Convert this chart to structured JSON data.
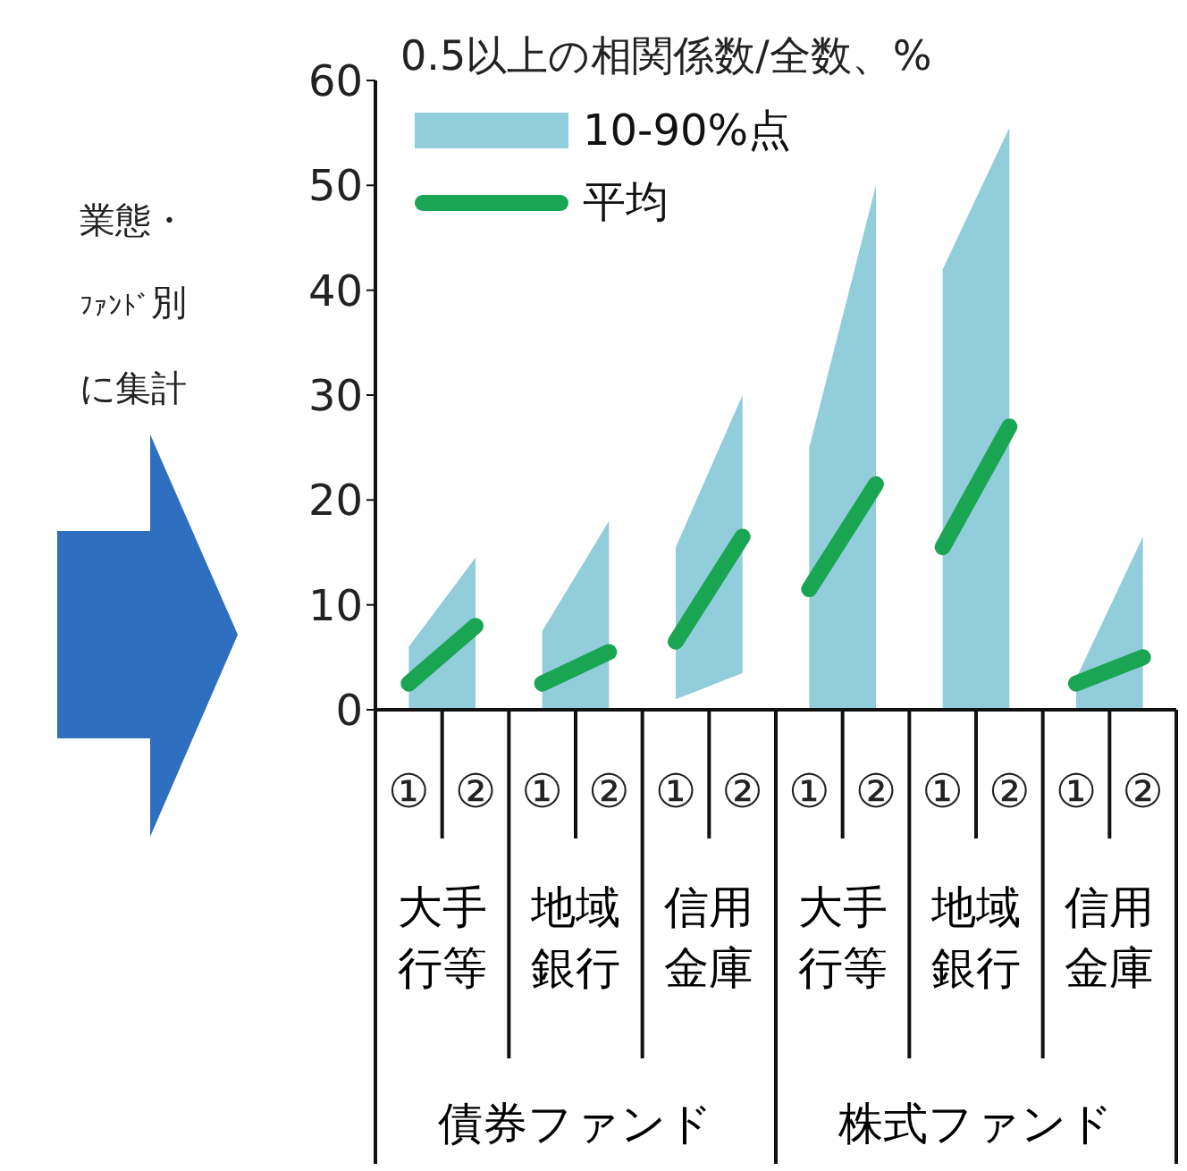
{
  "chart_data": {
    "type": "line",
    "title": "0.5以上の相関係数/全数、%",
    "categories": [
      "①",
      "②",
      "①",
      "②",
      "①",
      "②",
      "①",
      "②",
      "①",
      "②",
      "①",
      "②"
    ],
    "series": [
      {
        "name": "平均",
        "color": "#1aa553",
        "values": [
          2.5,
          8,
          2.5,
          5.5,
          6.5,
          16.5,
          11.5,
          21.5,
          15.5,
          27,
          2.5,
          5
        ],
        "lower": [
          0,
          0,
          0,
          0,
          1,
          3.5,
          0,
          0,
          0,
          0,
          0,
          0
        ],
        "upper": [
          6,
          14.5,
          7.5,
          18,
          15.5,
          30,
          25,
          50,
          42,
          55.5,
          3,
          16.5
        ]
      }
    ],
    "ylim": [
      0,
      60
    ],
    "yticks": [
      0,
      10,
      20,
      30,
      40,
      50,
      60
    ],
    "legend": "top left",
    "annotations": [
      "業態・ﾌｧﾝﾄﾞ別に集計",
      "10-90%点",
      "大手行等",
      "地域銀行",
      "信用金庫",
      "大手行等",
      "地域銀行",
      "信用金庫",
      "債券ファンド",
      "株式ファンド"
    ]
  }
}
